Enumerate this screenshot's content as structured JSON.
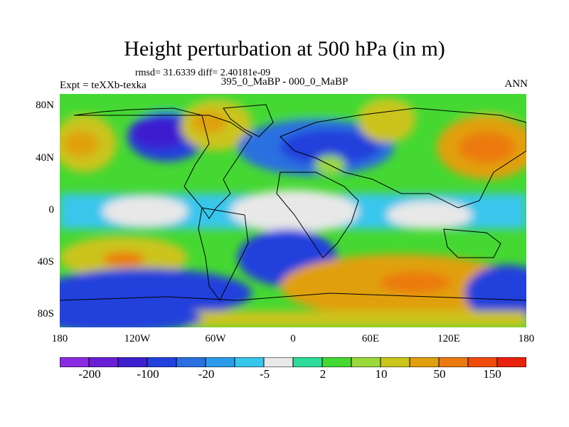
{
  "header": {
    "title": "Height perturbation at 500 hPa (in m)",
    "stats": "rmsd= 31.6339 diff= 2.40181e-09",
    "experiment": "Expt = teXXb-texka",
    "case": "395_0_MaBP - 000_0_MaBP",
    "season": "ANN"
  },
  "map": {
    "y_ticks": [
      "80N",
      "40N",
      "0",
      "40S",
      "80S"
    ],
    "x_ticks": [
      "180",
      "120W",
      "60W",
      "0",
      "60E",
      "120E",
      "180"
    ],
    "land_outline_color": "#000000",
    "missing_color": "#e8e8e8"
  },
  "colorbar": {
    "colors": [
      "#8a2be2",
      "#6a1fd6",
      "#3d1fcf",
      "#2240dc",
      "#2a6fe0",
      "#2d9bea",
      "#37c6ec",
      "#e8e8e8",
      "#2fdc9a",
      "#45d832",
      "#9bd83a",
      "#cbc41a",
      "#e0a010",
      "#ec7a10",
      "#f04a0c",
      "#e8200c"
    ],
    "labels": [
      "-200",
      "-100",
      "-20",
      "-5",
      "2",
      "10",
      "50",
      "150"
    ]
  }
}
